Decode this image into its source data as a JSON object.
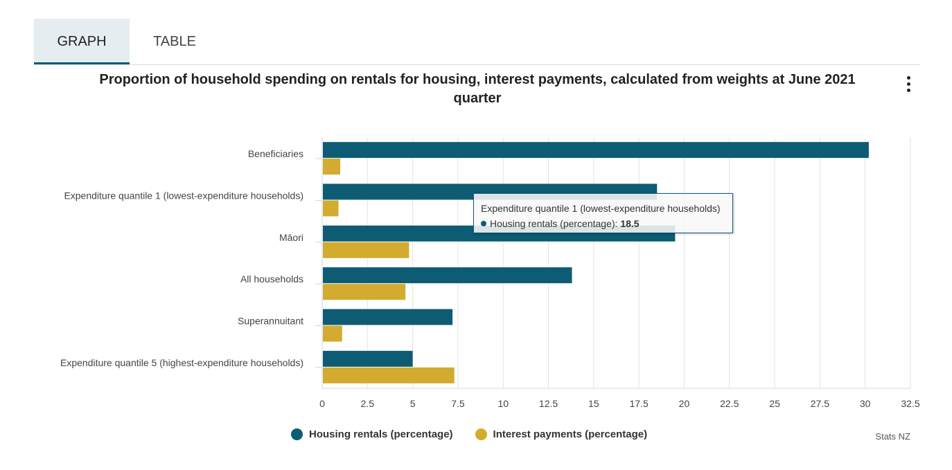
{
  "tabs": [
    {
      "label": "GRAPH",
      "active": true
    },
    {
      "label": "TABLE",
      "active": false
    }
  ],
  "menu_icon": "vertical-ellipsis-icon",
  "credit": "Stats NZ",
  "colors": {
    "housing": "#0d5c74",
    "interest": "#d2ab2f",
    "grid": "#e3e3e3"
  },
  "tooltip": {
    "category": "Expenditure quantile 1 (lowest-expenditure households)",
    "series": "Housing rentals (percentage)",
    "separator": ":",
    "value": "18.5"
  },
  "chart_data": {
    "type": "bar",
    "orientation": "horizontal",
    "title": "Proportion of household spending on rentals for housing, interest payments, calculated from weights at June 2021 quarter",
    "categories": [
      "Beneficiaries",
      "Expenditure quantile 1 (lowest-expenditure households)",
      "Māori",
      "All households",
      "Superannuitant",
      "Expenditure quantile 5 (highest-expenditure households)"
    ],
    "series": [
      {
        "name": "Housing rentals (percentage)",
        "values": [
          30.2,
          18.5,
          19.5,
          13.8,
          7.2,
          5.0
        ]
      },
      {
        "name": "Interest payments (percentage)",
        "values": [
          1.0,
          0.9,
          4.8,
          4.6,
          1.1,
          7.3
        ]
      }
    ],
    "xlim": [
      0,
      32.5
    ],
    "xticks": [
      "0",
      "2.5",
      "5",
      "7.5",
      "10",
      "12.5",
      "15",
      "17.5",
      "20",
      "22.5",
      "25",
      "27.5",
      "30",
      "32.5"
    ],
    "grid": true,
    "legend_position": "bottom-center"
  }
}
